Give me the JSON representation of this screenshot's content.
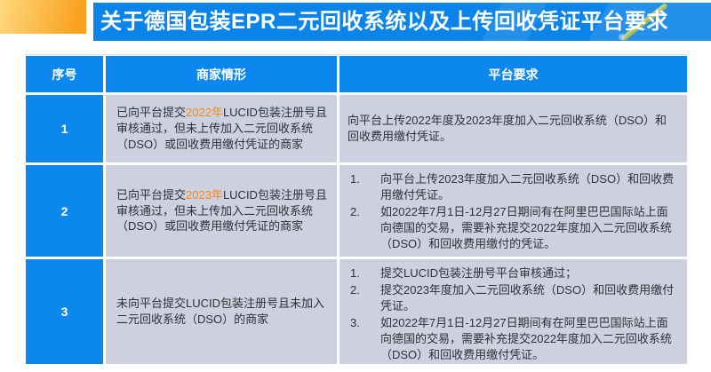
{
  "banner": {
    "title": "关于德国包装EPR二元回收系统以及上传回收凭证平台要求"
  },
  "colors": {
    "banner_bg": "#0b84ea",
    "accent_gradient": [
      "#ffd97e",
      "#f9a01d"
    ],
    "table_header_bg": "#0c87ee",
    "cell_bg": "#cdd1df",
    "year_highlight": "#f5881d",
    "pencil": "#aec063"
  },
  "table": {
    "headers": {
      "col1": "序号",
      "col2": "商家情形",
      "col3": "平台要求"
    },
    "rows": [
      {
        "num": "1",
        "situation": {
          "pre": "已向平台提交",
          "highlight": "2022年",
          "post": "LUCID包装注册号且审核通过，但未上传加入二元回收系统（DSO）或回收费用缴付凭证的商家"
        },
        "requirement": "向平台上传2022年度及2023年度加入二元回收系统（DSO）和回收费用缴付凭证。"
      },
      {
        "num": "2",
        "situation": {
          "pre": "已向平台提交",
          "highlight": "2023年",
          "post": "LUCID包装注册号且审核通过，但未上传加入二元回收系统（DSO）或回收费用缴付凭证的商家"
        },
        "requirements": [
          {
            "marker": "1.",
            "text": "向平台上传2023年度加入二元回收系统（DSO）和回收费用缴付凭证。"
          },
          {
            "marker": "2.",
            "text": "如2022年7月1日-12月27日期间有在阿里巴巴国际站上面向德国的交易，需要补充提交2022年度加入二元回收系统（DSO）和回收费用缴付的凭证。"
          }
        ]
      },
      {
        "num": "3",
        "situation": {
          "pre": "未向平台提交LUCID包装注册号且未加入二元回收系统（DSO）的商家",
          "highlight": "",
          "post": ""
        },
        "requirements": [
          {
            "marker": "1.",
            "text": "提交LUCID包装注册号平台审核通过；"
          },
          {
            "marker": "2.",
            "text": "提交2023年度加入二元回收系统（DSO）和回收费用缴付凭证。"
          },
          {
            "marker": "3.",
            "text": "如2022年7月1日-12月27日期间有在阿里巴巴国际站上面向德国的交易，需要补充提交2022年度加入二元回收系统（DSO）和回收费用缴付凭证。"
          }
        ]
      }
    ]
  }
}
